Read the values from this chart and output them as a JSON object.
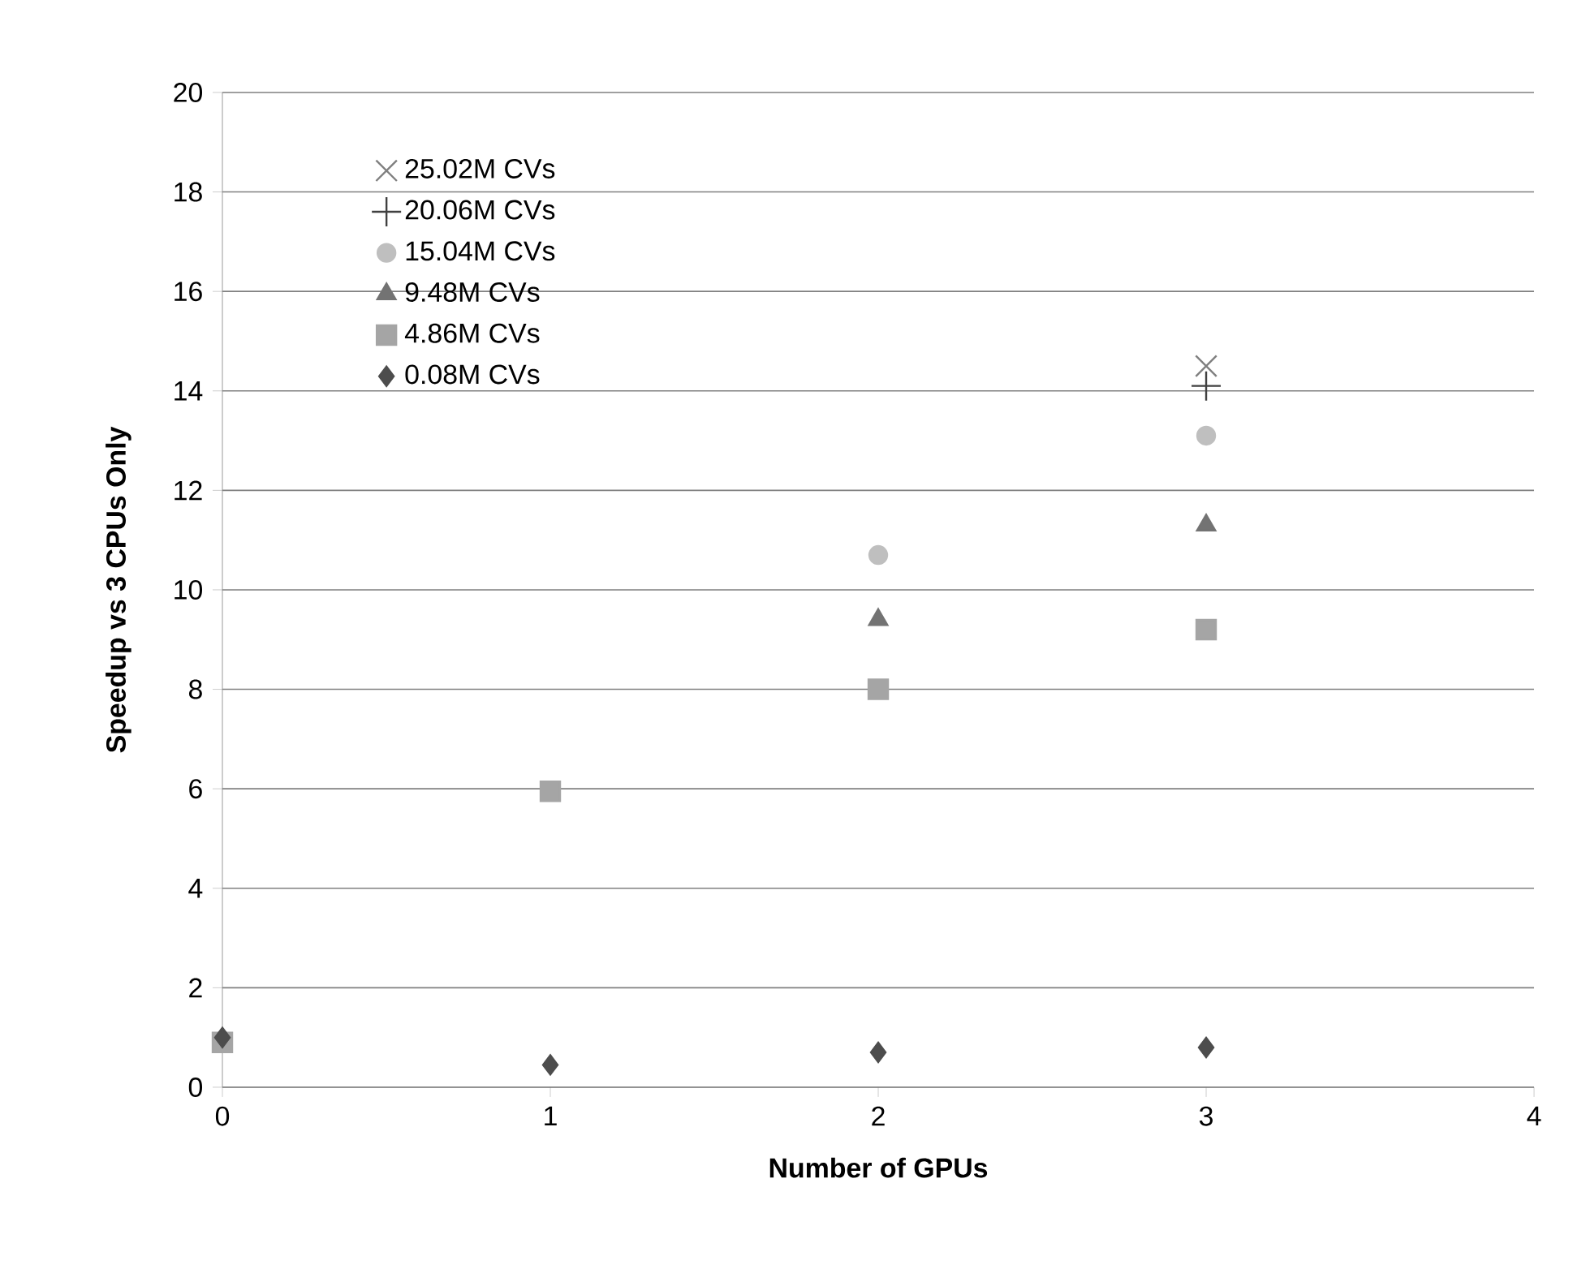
{
  "chart_data": {
    "type": "scatter",
    "xlabel": "Number of GPUs",
    "ylabel": "Speedup vs 3 CPUs Only",
    "xlim": [
      0,
      4
    ],
    "xticks": [
      0,
      1,
      2,
      3,
      4
    ],
    "ylim": [
      0,
      20
    ],
    "yticks": [
      0,
      2,
      4,
      6,
      8,
      10,
      12,
      14,
      16,
      18,
      20
    ],
    "grid": "y",
    "legend": "top left",
    "series": [
      {
        "name": "25.02M CVs",
        "color": "#7f7f7f",
        "marker": "cross",
        "x": [
          3
        ],
        "values": [
          14.5
        ]
      },
      {
        "name": "20.06M CVs",
        "color": "#404040",
        "marker": "plus",
        "x": [
          3
        ],
        "values": [
          14.1
        ]
      },
      {
        "name": "15.04M CVs",
        "color": "#bfbfbf",
        "marker": "circle",
        "x": [
          2,
          3
        ],
        "values": [
          10.7,
          13.1
        ]
      },
      {
        "name": "9.48M CVs",
        "color": "#737373",
        "marker": "triangle",
        "x": [
          2,
          3
        ],
        "values": [
          9.4,
          11.3
        ]
      },
      {
        "name": "4.86M CVs",
        "color": "#a5a5a5",
        "marker": "square",
        "x": [
          0,
          1,
          2,
          3
        ],
        "values": [
          0.9,
          5.95,
          8.0,
          9.2
        ]
      },
      {
        "name": "0.08M CVs",
        "color": "#4d4d4d",
        "marker": "diamond",
        "x": [
          0,
          1,
          2,
          3
        ],
        "values": [
          1.0,
          0.45,
          0.7,
          0.8
        ]
      }
    ]
  }
}
